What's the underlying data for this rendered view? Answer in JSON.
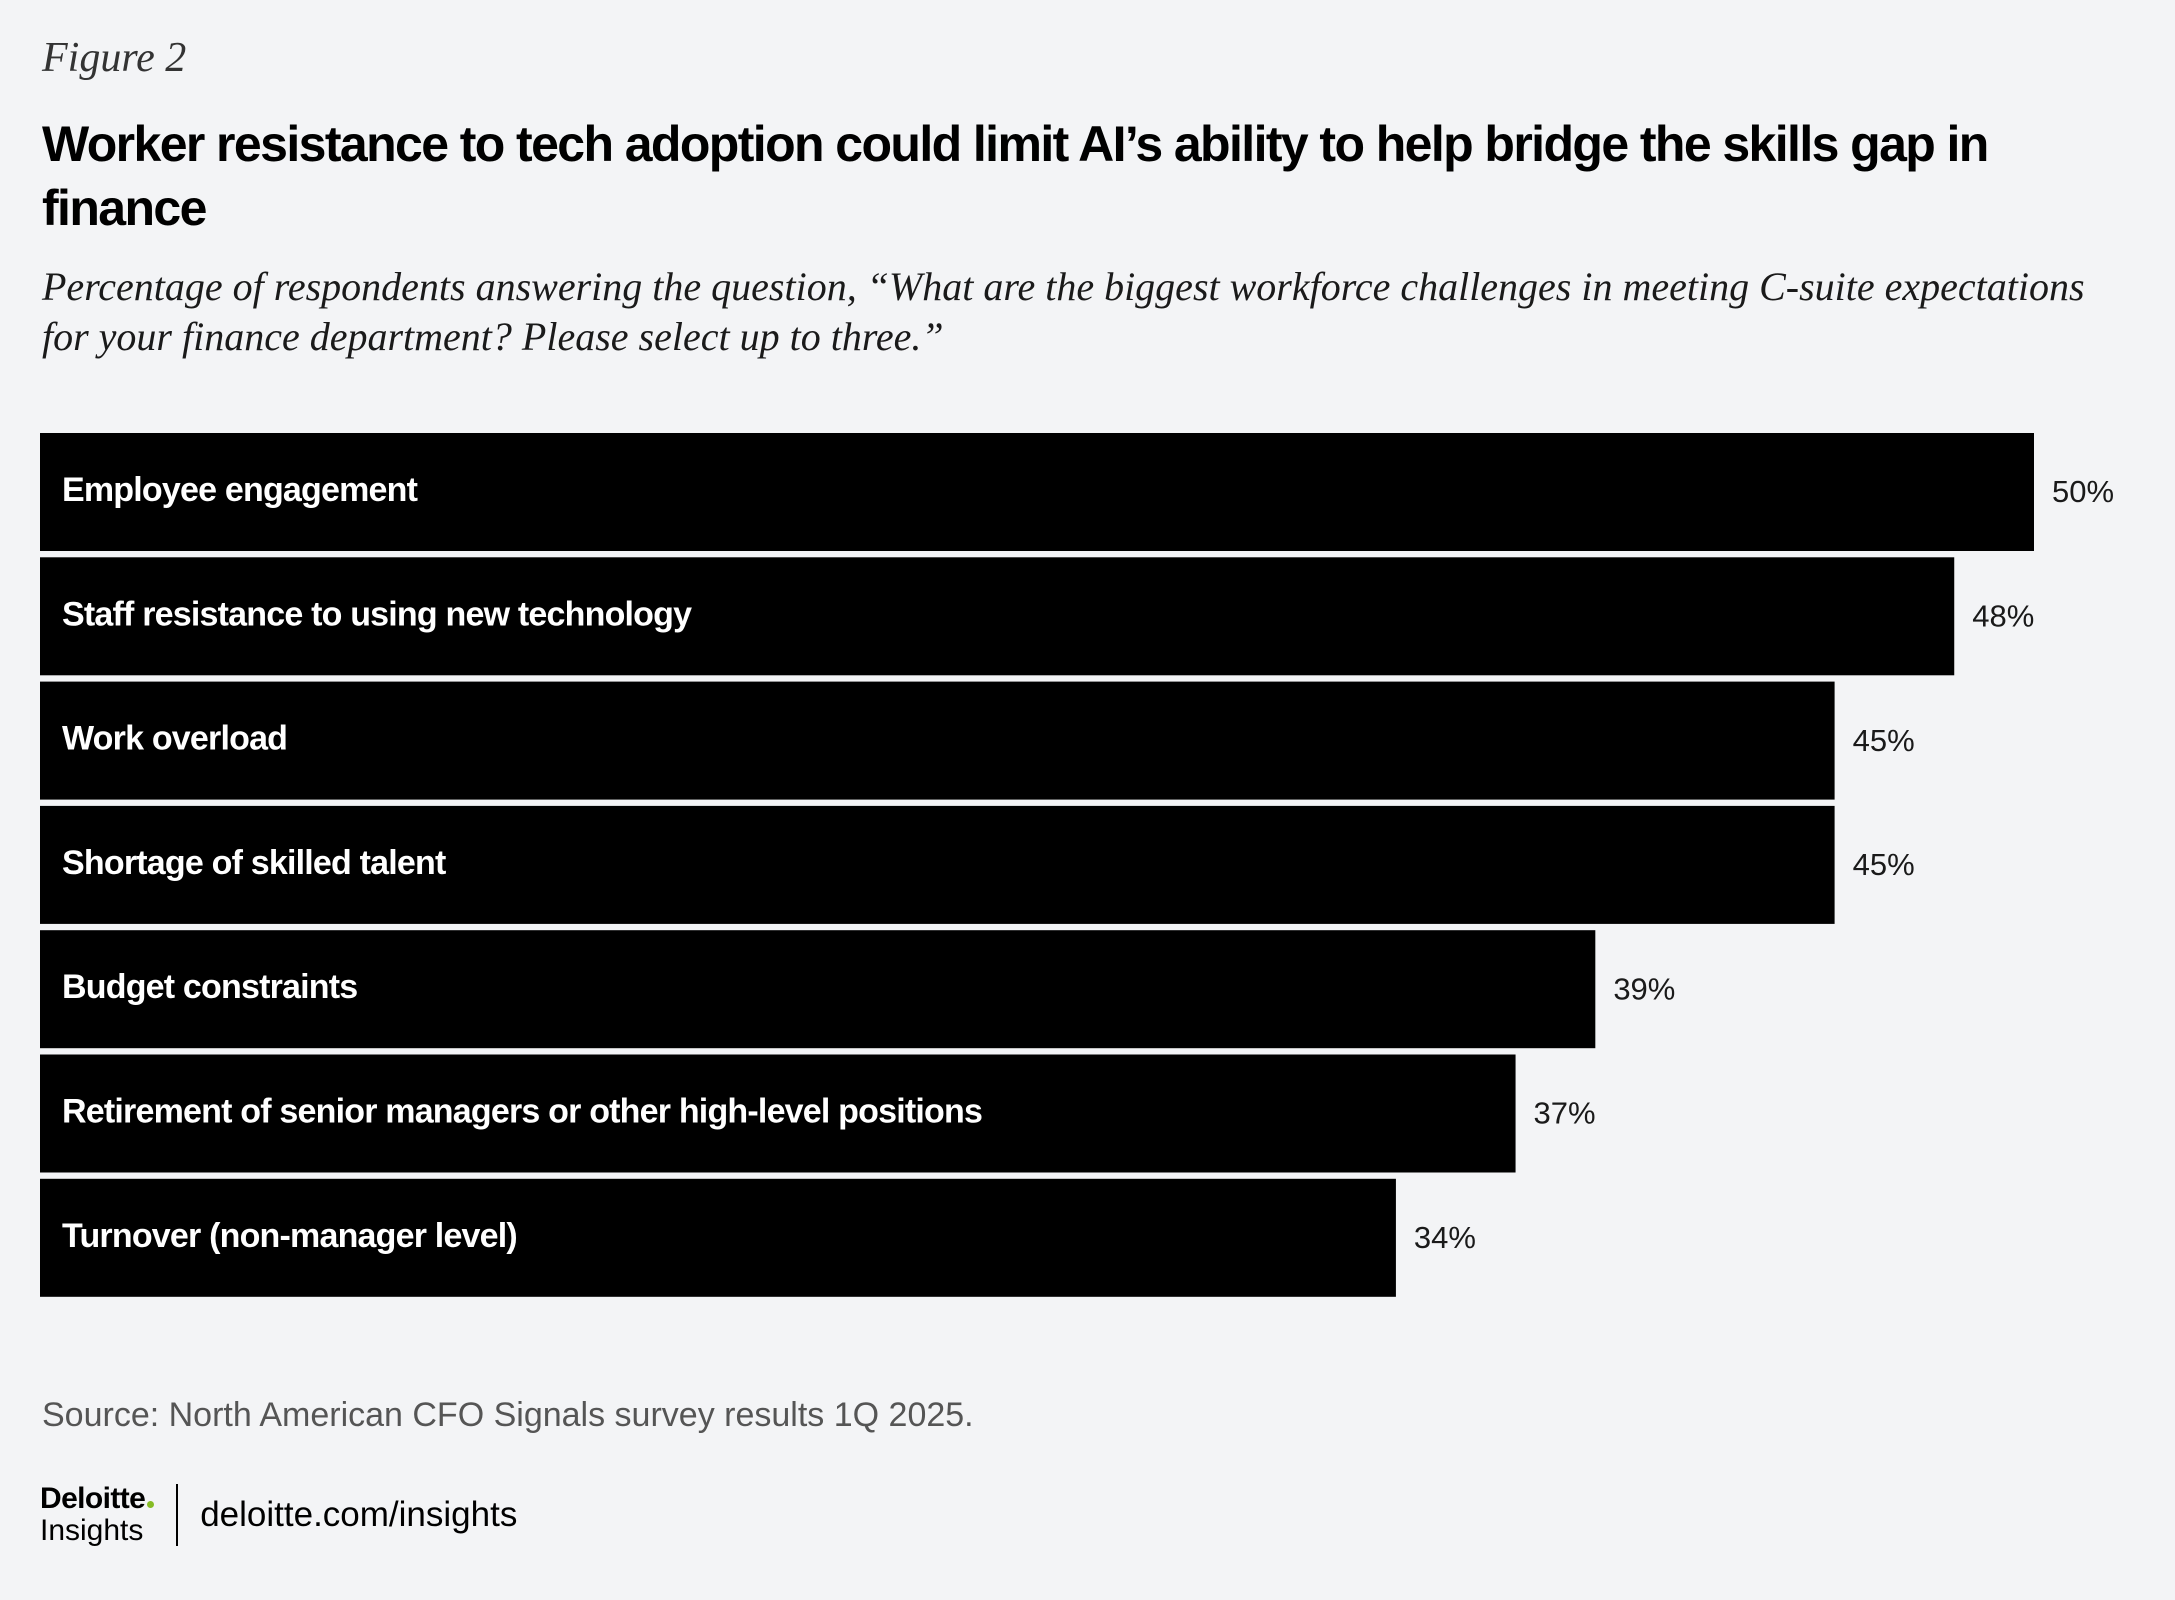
{
  "figure_label": "Figure 2",
  "title": "Worker resistance to tech adoption could limit AI’s ability to help bridge the skills gap in finance",
  "subtitle": "Percentage of respondents answering the question, “What are the biggest workforce challenges in meeting C-suite expectations for your finance department? Please select up to three.”",
  "chart_data": {
    "type": "bar",
    "orientation": "horizontal",
    "categories": [
      "Employee engagement",
      "Staff resistance to using new technology",
      "Work overload",
      "Shortage of skilled talent",
      "Budget constraints",
      "Retirement of senior managers or other high-level positions",
      "Turnover (non-manager level)"
    ],
    "values": [
      50,
      48,
      45,
      45,
      39,
      37,
      34
    ],
    "value_labels": [
      "50%",
      "48%",
      "45%",
      "45%",
      "39%",
      "37%",
      "34%"
    ],
    "unit": "%",
    "bar_color": "#000000",
    "label_color": "#ffffff",
    "grid": false,
    "legend": "none"
  },
  "source": "Source: North American CFO Signals survey results 1Q 2025.",
  "footer": {
    "logo_name": "Deloitte",
    "logo_sub": "Insights",
    "url": "deloitte.com/insights"
  },
  "colors": {
    "background": "#f3f4f6",
    "bar": "#000000",
    "logo_dot": "#86bc25"
  }
}
